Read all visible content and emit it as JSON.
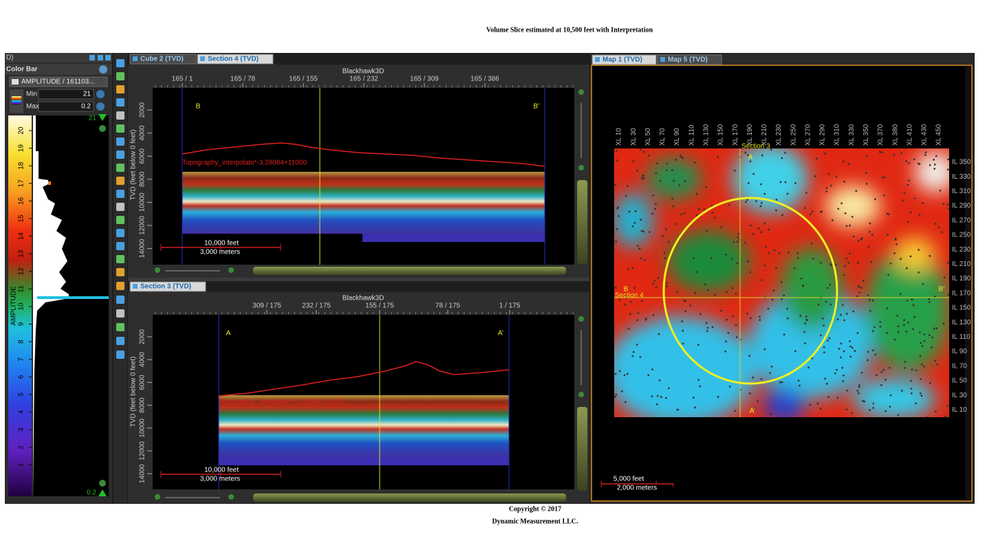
{
  "header": {
    "title": "Volume Slice estimated at 10,500 feet with Interpretation"
  },
  "colorbar_panel": {
    "window_label": "D)",
    "title": "Color Bar",
    "attribute": "AMPLITUDE / 161103...",
    "min_label": "Min",
    "min_value": "21",
    "max_label": "Max",
    "max_value": "0.2",
    "top_value": "21",
    "bottom_value": "0.2",
    "axis_label": "AMPLITUDE",
    "ticks": [
      "20",
      "19",
      "18",
      "17",
      "16",
      "15",
      "14",
      "13",
      "12",
      "11",
      "10",
      "9",
      "8",
      "7",
      "6",
      "5",
      "4",
      "3",
      "2",
      "1"
    ]
  },
  "sections": [
    {
      "tabs": [
        "Cube 2 (TVD)",
        "Section 4 (TVD)"
      ],
      "survey": "Blackhawk3D",
      "x_ticks": [
        "165 / 1",
        "165 / 78",
        "165 / 155",
        "165 / 232",
        "165 / 309",
        "165 / 386"
      ],
      "y_label": "TVD (feet below 0 feet)",
      "y_ticks": [
        "2000",
        "4000",
        "6000",
        "8000",
        "10000",
        "12000",
        "14000"
      ],
      "left_marker": "B",
      "right_marker": "B’",
      "horizon_label": "Topography_interpolate*-3.28084+11000",
      "scale_feet": "10,000 feet",
      "scale_meters": "3,000 meters"
    },
    {
      "tabs": [
        "Section 3 (TVD)"
      ],
      "survey": "Blackhawk3D",
      "x_ticks": [
        "309 / 175",
        "232 / 175",
        "155 / 175",
        "78 / 175",
        "1 / 175"
      ],
      "y_label": "TVD (feet below 0 feet)",
      "y_ticks": [
        "2000",
        "4000",
        "6000",
        "8000",
        "10000",
        "12000",
        "14000"
      ],
      "left_marker": "A",
      "right_marker": "A’",
      "horizon_label": "Topography_interpolate*-3.28084+11000",
      "scale_feet": "10,000 feet",
      "scale_meters": "3,000 meters"
    }
  ],
  "map": {
    "tabs": [
      "Map 1 (TVD)",
      "Map 5 (TVD)"
    ],
    "xl_ticks": [
      "XL 10",
      "XL 30",
      "XL 50",
      "XL 70",
      "XL 90",
      "XL 110",
      "XL 130",
      "XL 150",
      "XL 170",
      "XL 190",
      "XL 210",
      "XL 230",
      "XL 250",
      "XL 270",
      "XL 290",
      "XL 310",
      "XL 330",
      "XL 350",
      "XL 370",
      "XL 380",
      "XL 410",
      "XL 430",
      "XL 450"
    ],
    "il_ticks": [
      "IL 350",
      "IL 330",
      "IL 310",
      "IL 290",
      "IL 270",
      "IL 250",
      "IL 230",
      "IL 210",
      "IL 190",
      "IL 170",
      "IL 150",
      "IL 130",
      "IL 110",
      "IL 90",
      "IL 70",
      "IL 50",
      "IL 30",
      "IL 10"
    ],
    "section_v": "Section 3",
    "section_h": "Section 4",
    "top_marker": "A",
    "bottom_marker": "A’",
    "left_marker": "B",
    "right_marker": "B’",
    "scale_feet": "5,000 feet",
    "scale_meters": "2,000 meters"
  },
  "footer": {
    "copyright": "Copyright  © 2017",
    "company": "Dynamic Measurement LLC."
  }
}
